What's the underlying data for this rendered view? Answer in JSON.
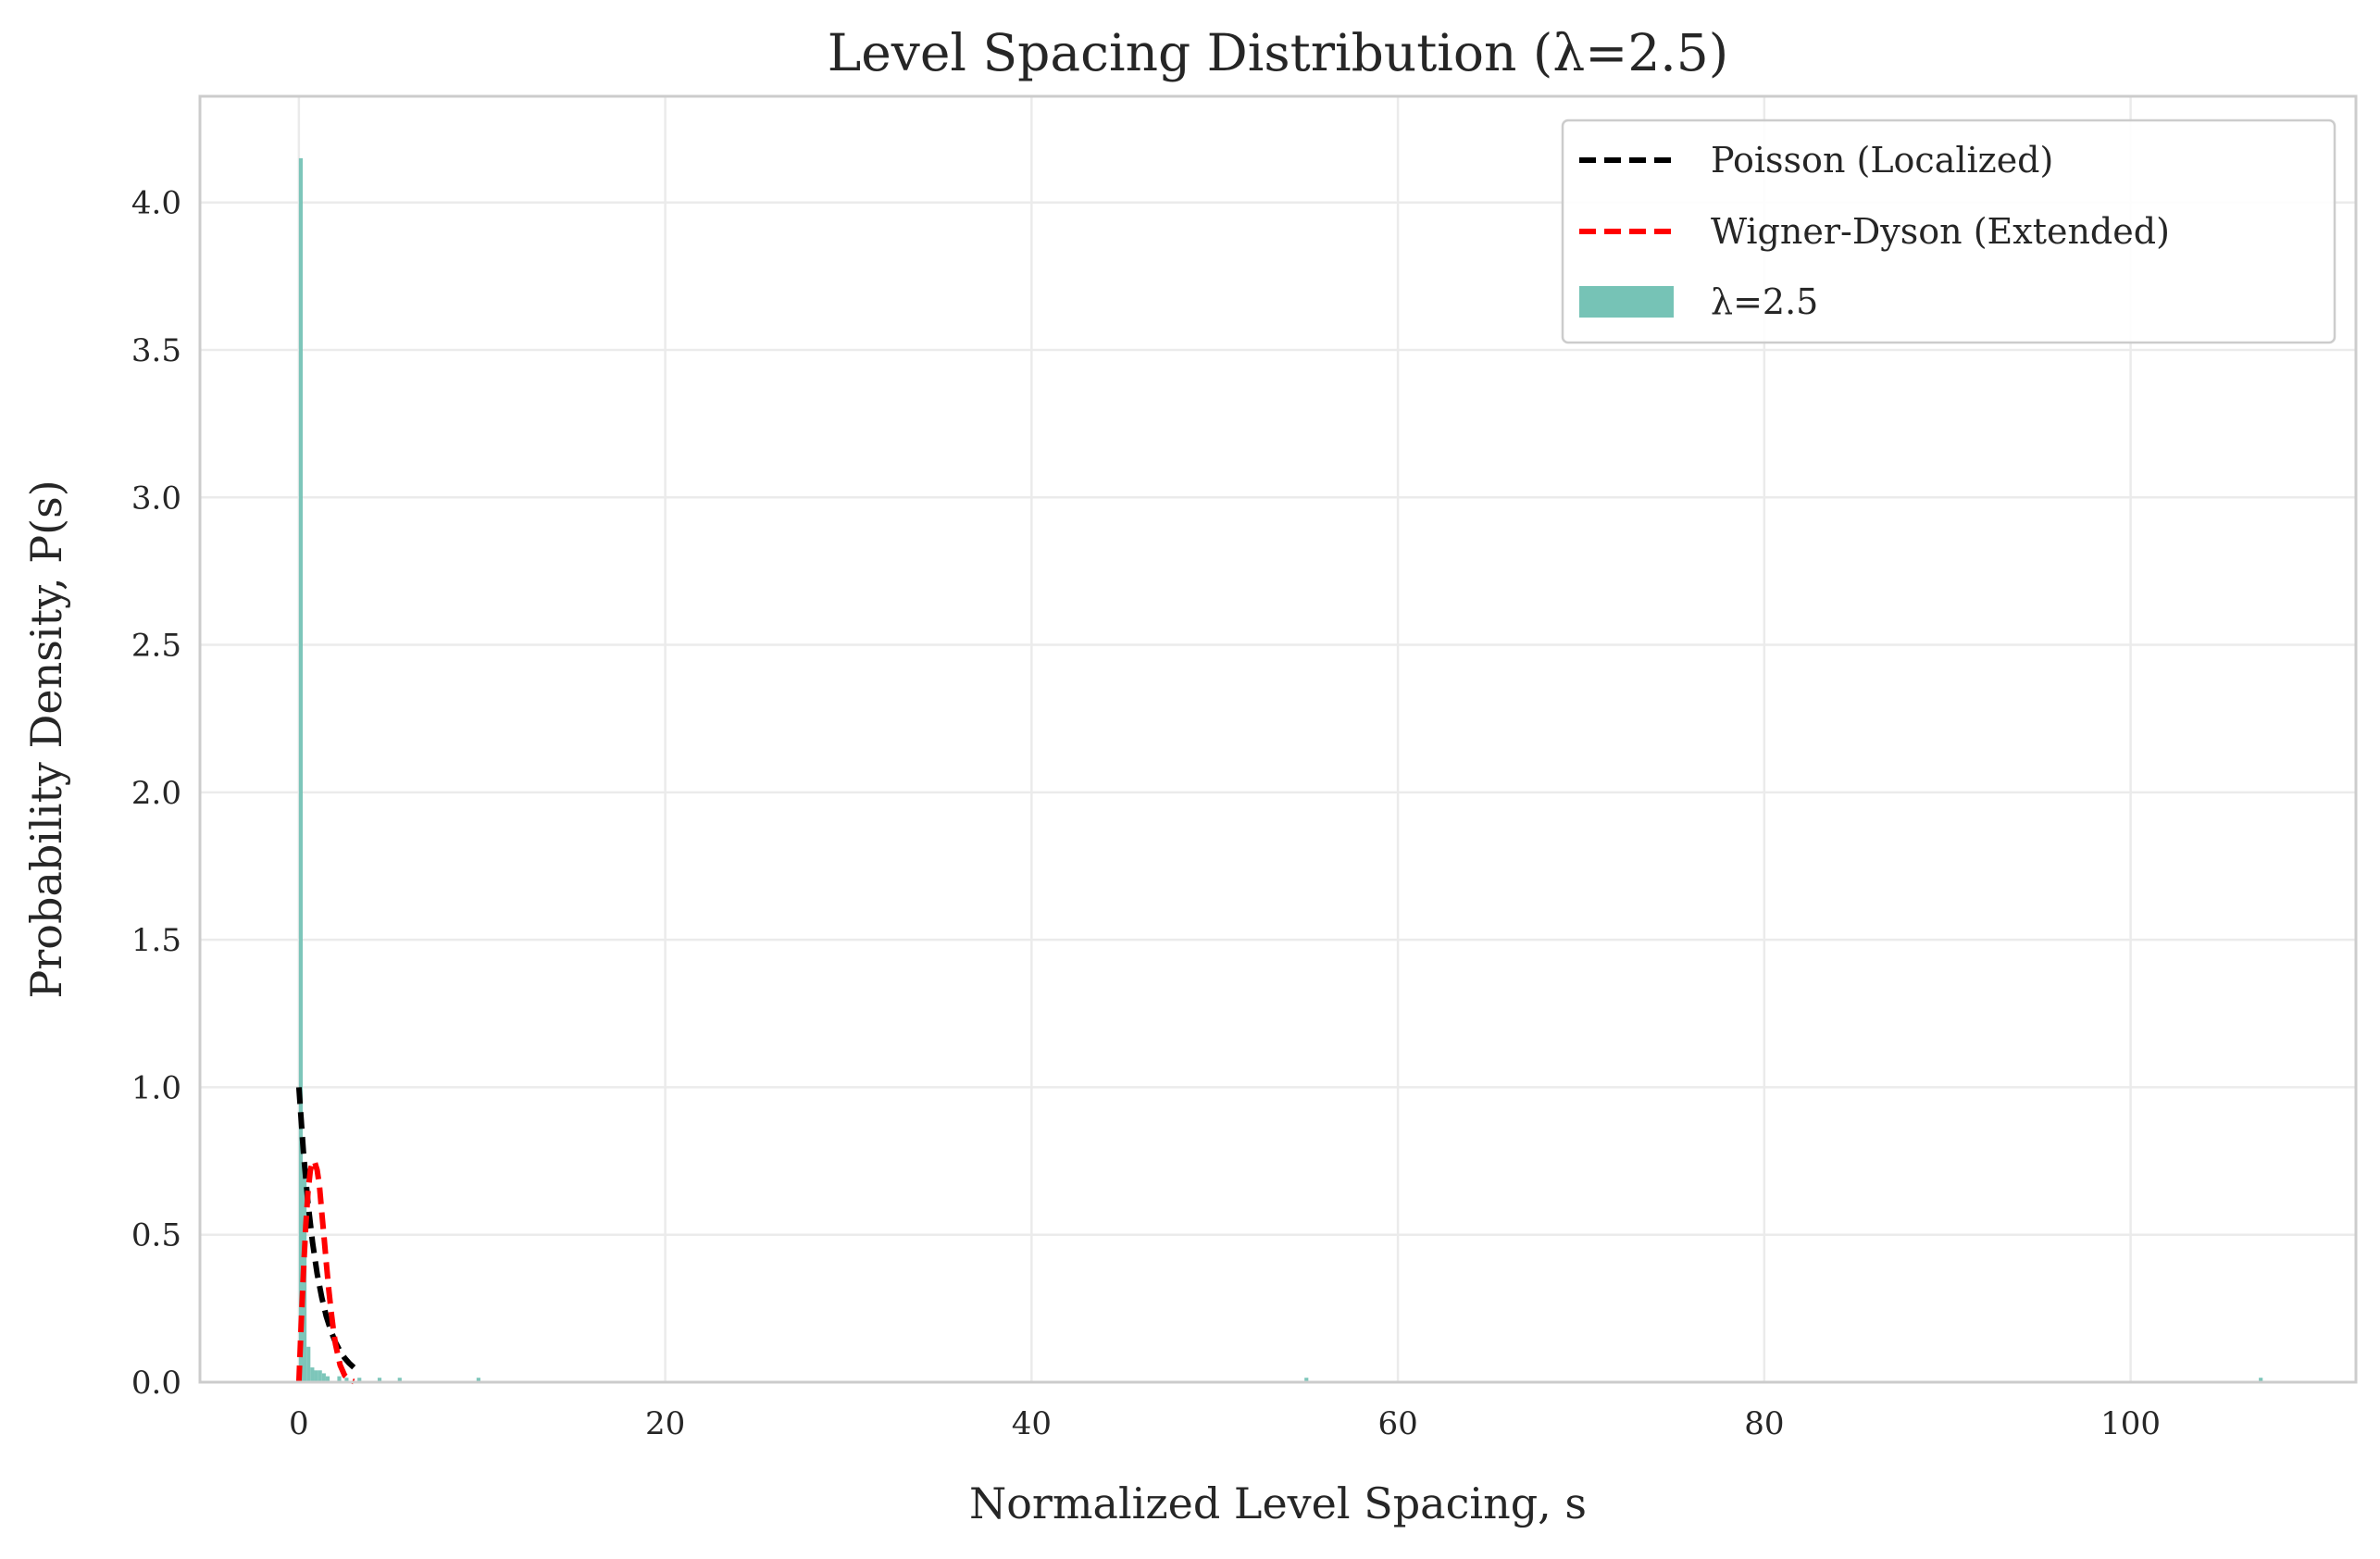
{
  "chart_data": {
    "type": "bar",
    "title": "Level Spacing Distribution (λ=2.5)",
    "xlabel": "Normalized Level Spacing, s",
    "ylabel": "Probability Density, P(s)",
    "xlim": [
      -5.4,
      112.3
    ],
    "ylim": [
      0,
      4.36
    ],
    "xticks": [
      0,
      20,
      40,
      60,
      80,
      100
    ],
    "yticks": [
      0.0,
      0.5,
      1.0,
      1.5,
      2.0,
      2.5,
      3.0,
      3.5,
      4.0
    ],
    "grid": true,
    "legend_position": "top-right",
    "histogram": {
      "name": "λ=2.5",
      "color": "#76c3b6",
      "bin_width": 0.21,
      "bins": [
        {
          "x": 0.0,
          "y": 4.15
        },
        {
          "x": 0.21,
          "y": 0.72
        },
        {
          "x": 0.42,
          "y": 0.12
        },
        {
          "x": 0.63,
          "y": 0.05
        },
        {
          "x": 0.84,
          "y": 0.04
        },
        {
          "x": 1.05,
          "y": 0.04
        },
        {
          "x": 1.26,
          "y": 0.03
        },
        {
          "x": 1.47,
          "y": 0.02
        },
        {
          "x": 2.1,
          "y": 0.02
        },
        {
          "x": 2.5,
          "y": 0.015
        },
        {
          "x": 3.2,
          "y": 0.015
        },
        {
          "x": 4.3,
          "y": 0.015
        },
        {
          "x": 5.4,
          "y": 0.015
        },
        {
          "x": 9.7,
          "y": 0.015
        },
        {
          "x": 54.9,
          "y": 0.015
        },
        {
          "x": 107.0,
          "y": 0.015
        }
      ]
    },
    "series": [
      {
        "name": "Poisson (Localized)",
        "color": "#000000",
        "style": "dashed",
        "x": [
          0,
          0.25,
          0.5,
          0.75,
          1.0,
          1.25,
          1.5,
          1.75,
          2.0,
          2.25,
          2.5,
          2.75,
          3.0
        ],
        "y": [
          1.0,
          0.779,
          0.607,
          0.472,
          0.368,
          0.287,
          0.223,
          0.174,
          0.135,
          0.105,
          0.082,
          0.064,
          0.05
        ]
      },
      {
        "name": "Wigner-Dyson (Extended)",
        "color": "#ff0000",
        "style": "dashed",
        "x": [
          0,
          0.125,
          0.25,
          0.375,
          0.5,
          0.625,
          0.75,
          0.875,
          1.0,
          1.125,
          1.25,
          1.375,
          1.5,
          1.625,
          1.75,
          1.875,
          2.0,
          2.25,
          2.5,
          2.75,
          3.0
        ],
        "y": [
          0,
          0.193,
          0.374,
          0.53,
          0.644,
          0.717,
          0.75,
          0.744,
          0.719,
          0.665,
          0.575,
          0.49,
          0.404,
          0.319,
          0.245,
          0.181,
          0.129,
          0.058,
          0.023,
          0.008,
          0.002
        ]
      }
    ]
  }
}
